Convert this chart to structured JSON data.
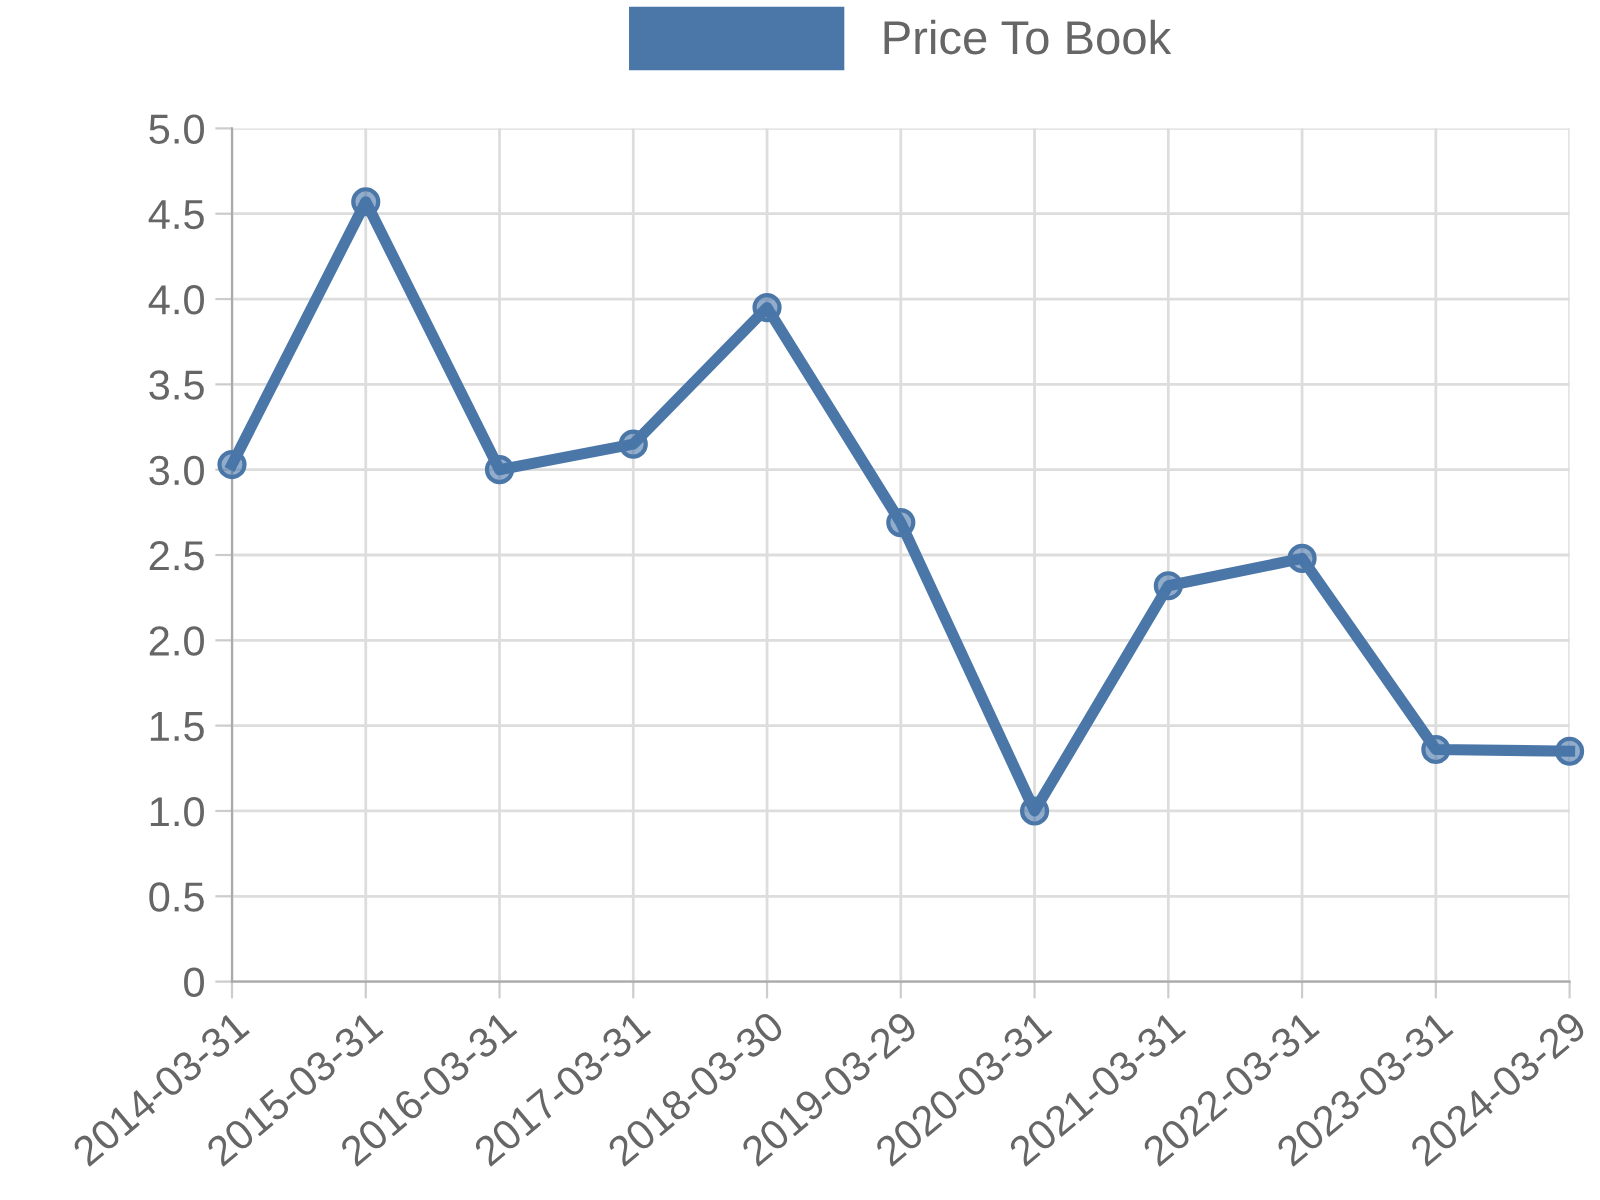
{
  "chart_data": {
    "type": "line",
    "categories": [
      "2014-03-31",
      "2015-03-31",
      "2016-03-31",
      "2017-03-31",
      "2018-03-30",
      "2019-03-29",
      "2020-03-31",
      "2021-03-31",
      "2022-03-31",
      "2023-03-31",
      "2024-03-29"
    ],
    "series": [
      {
        "name": "Price To Book",
        "color": "#4a76a8",
        "values": [
          3.03,
          4.57,
          3.0,
          3.15,
          3.95,
          2.69,
          1.0,
          2.32,
          2.48,
          1.36,
          1.35
        ]
      }
    ],
    "ylim": [
      0,
      5
    ],
    "yticks": [
      0,
      {
        "value": 0.5,
        "label": "0.5"
      },
      {
        "value": 1,
        "label": "1.0"
      },
      {
        "value": 1.5,
        "label": "1.5"
      },
      {
        "value": 2,
        "label": "2.0"
      },
      {
        "value": 2.5,
        "label": "2.5"
      },
      {
        "value": 3,
        "label": "3.0"
      },
      {
        "value": 3.5,
        "label": "3.5"
      },
      {
        "value": 4,
        "label": "4.0"
      },
      {
        "value": 4.5,
        "label": "4.5"
      },
      {
        "value": 5,
        "label": "5.0"
      }
    ],
    "grid": true,
    "legend": "top",
    "marker": "circle",
    "line_style": "solid"
  }
}
